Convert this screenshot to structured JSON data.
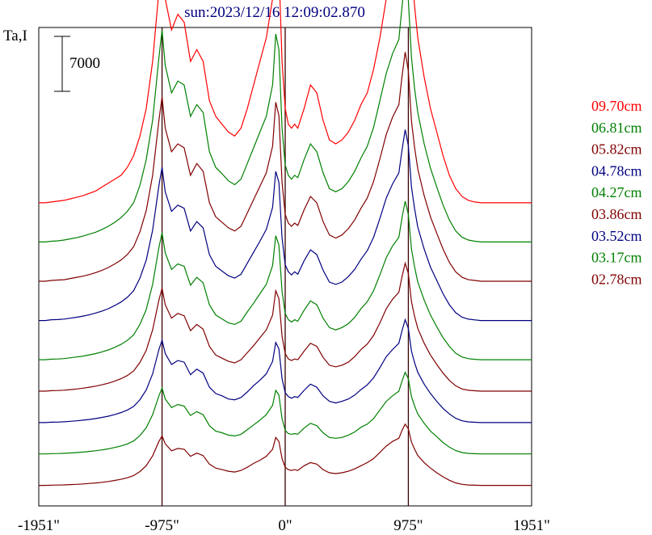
{
  "chart_data": {
    "type": "line",
    "title": "sun:2023/12/16 12:09:02.870",
    "ylabel": "Ta,I",
    "xlabel": "",
    "x_unit": "arcsec",
    "xlim": [
      -1951,
      1951
    ],
    "xticks": [
      {
        "value": -1951,
        "label": "-1951\""
      },
      {
        "value": -975,
        "label": "-975\""
      },
      {
        "value": 0,
        "label": "0\""
      },
      {
        "value": 975,
        "label": "975\""
      },
      {
        "value": 1951,
        "label": "1951\""
      }
    ],
    "vertical_lines": [
      -975,
      0,
      975
    ],
    "scale_bar": {
      "label": "7000",
      "value": 7000
    },
    "grid": false,
    "legend_position": "right",
    "x": [
      -1951,
      -1900,
      -1850,
      -1800,
      -1750,
      -1700,
      -1650,
      -1600,
      -1550,
      -1500,
      -1450,
      -1400,
      -1350,
      -1300,
      -1250,
      -1200,
      -1150,
      -1100,
      -1050,
      -1000,
      -975,
      -950,
      -900,
      -850,
      -800,
      -750,
      -700,
      -650,
      -600,
      -550,
      -500,
      -450,
      -400,
      -350,
      -300,
      -250,
      -200,
      -150,
      -100,
      -75,
      -50,
      -25,
      0,
      25,
      50,
      75,
      100,
      150,
      200,
      250,
      300,
      350,
      400,
      450,
      500,
      550,
      600,
      650,
      700,
      750,
      800,
      850,
      900,
      925,
      950,
      975,
      1000,
      1025,
      1050,
      1100,
      1150,
      1200,
      1250,
      1300,
      1350,
      1400,
      1450,
      1500,
      1550,
      1600,
      1650,
      1700,
      1750,
      1800,
      1850,
      1900,
      1951
    ],
    "series": [
      {
        "name": "09.70cm",
        "color": "#ff0000",
        "offset": 38000,
        "values": [
          0,
          0,
          100,
          200,
          300,
          500,
          700,
          900,
          1200,
          1500,
          2000,
          2500,
          3000,
          3500,
          4500,
          6000,
          8500,
          12000,
          18000,
          27000,
          31000,
          26000,
          22000,
          24000,
          23000,
          18000,
          19500,
          18000,
          13000,
          11000,
          10000,
          9000,
          8500,
          9500,
          12000,
          15000,
          18000,
          21000,
          26000,
          31500,
          30000,
          18000,
          12000,
          10000,
          9500,
          10000,
          9500,
          12000,
          15000,
          14000,
          10500,
          8000,
          7500,
          8000,
          9000,
          10500,
          12500,
          14000,
          17000,
          21000,
          26000,
          30000,
          33000,
          36000,
          38500,
          38000,
          30000,
          25000,
          21000,
          16000,
          12000,
          9000,
          6000,
          3500,
          1800,
          800,
          300,
          100,
          0,
          0,
          0,
          0,
          0,
          0,
          0,
          0,
          0
        ]
      },
      {
        "name": "06.81cm",
        "color": "#008000",
        "offset": 33000,
        "values": [
          0,
          0,
          100,
          150,
          250,
          400,
          550,
          750,
          1000,
          1250,
          1600,
          2000,
          2500,
          3100,
          3900,
          5000,
          7200,
          10500,
          15500,
          23500,
          27000,
          22500,
          19000,
          20500,
          20000,
          16000,
          17500,
          16500,
          11500,
          9500,
          8700,
          7800,
          7300,
          8000,
          10000,
          12000,
          14000,
          16000,
          20000,
          26500,
          24500,
          14500,
          9800,
          8500,
          8000,
          8500,
          8200,
          10500,
          12500,
          11500,
          8800,
          6800,
          6400,
          6800,
          7700,
          9000,
          10700,
          12200,
          14600,
          18000,
          21500,
          24000,
          25800,
          30000,
          33500,
          30800,
          23500,
          19500,
          16500,
          12500,
          9400,
          7000,
          4700,
          2800,
          1400,
          600,
          250,
          100,
          0,
          0,
          0,
          0,
          0,
          0,
          0,
          0,
          0
        ]
      },
      {
        "name": "05.82cm",
        "color": "#800000",
        "offset": 28000,
        "values": [
          0,
          0,
          100,
          150,
          200,
          350,
          500,
          650,
          850,
          1100,
          1400,
          1750,
          2200,
          2700,
          3400,
          4400,
          6300,
          9000,
          13500,
          20500,
          23500,
          19500,
          16500,
          17500,
          17000,
          13500,
          15000,
          14000,
          10000,
          8200,
          7500,
          6800,
          6400,
          7000,
          8700,
          10400,
          12100,
          13800,
          17200,
          22800,
          21100,
          12600,
          8500,
          7400,
          7000,
          7400,
          7100,
          9100,
          10800,
          10000,
          7600,
          5900,
          5500,
          5900,
          6700,
          7800,
          9300,
          10600,
          12700,
          15600,
          18700,
          20900,
          22500,
          26100,
          29200,
          26800,
          20400,
          17000,
          14300,
          10900,
          8200,
          6100,
          4100,
          2400,
          1200,
          500,
          200,
          100,
          0,
          0,
          0,
          0,
          0,
          0,
          0,
          0,
          0
        ]
      },
      {
        "name": "04.78cm",
        "color": "#000080",
        "offset": 23000,
        "values": [
          0,
          0,
          100,
          120,
          180,
          300,
          420,
          560,
          740,
          950,
          1200,
          1500,
          1900,
          2350,
          2950,
          3800,
          5400,
          7700,
          11500,
          17200,
          19500,
          16400,
          13900,
          14700,
          14300,
          11400,
          12600,
          11800,
          8400,
          6900,
          6300,
          5700,
          5400,
          5900,
          7300,
          8700,
          10100,
          11600,
          14400,
          19000,
          17600,
          10500,
          7100,
          6200,
          5800,
          6200,
          5900,
          7600,
          9000,
          8400,
          6400,
          4900,
          4600,
          4900,
          5600,
          6500,
          7800,
          8900,
          10600,
          13000,
          15600,
          17400,
          18800,
          21700,
          24300,
          22300,
          17000,
          14200,
          11900,
          9100,
          6800,
          5100,
          3400,
          2000,
          1000,
          420,
          170,
          80,
          0,
          0,
          0,
          0,
          0,
          0,
          0,
          0,
          0
        ]
      },
      {
        "name": "04.27cm",
        "color": "#008000",
        "offset": 18000,
        "values": [
          0,
          0,
          80,
          100,
          150,
          250,
          350,
          470,
          620,
          790,
          1000,
          1250,
          1580,
          1960,
          2460,
          3170,
          4500,
          6400,
          9600,
          14300,
          16200,
          13600,
          11500,
          12200,
          11900,
          9500,
          10500,
          9800,
          7000,
          5700,
          5200,
          4700,
          4500,
          4900,
          6100,
          7200,
          8400,
          9600,
          12000,
          15800,
          14600,
          8700,
          5900,
          5100,
          4800,
          5100,
          4900,
          6300,
          7500,
          7000,
          5300,
          4100,
          3800,
          4100,
          4600,
          5400,
          6500,
          7400,
          8800,
          10800,
          13000,
          14500,
          15600,
          18100,
          20200,
          18500,
          14100,
          11800,
          9900,
          7600,
          5700,
          4200,
          2800,
          1700,
          840,
          350,
          140,
          60,
          0,
          0,
          0,
          0,
          0,
          0,
          0,
          0,
          0
        ]
      },
      {
        "name": "03.86cm",
        "color": "#800000",
        "offset": 14000,
        "values": [
          0,
          0,
          60,
          80,
          120,
          200,
          280,
          380,
          500,
          640,
          810,
          1010,
          1280,
          1590,
          1990,
          2570,
          3650,
          5200,
          7800,
          11600,
          13100,
          11000,
          9300,
          9900,
          9600,
          7700,
          8500,
          7900,
          5700,
          4600,
          4200,
          3800,
          3600,
          4000,
          4900,
          5800,
          6800,
          7800,
          9700,
          12800,
          11800,
          7000,
          4800,
          4100,
          3900,
          4100,
          4000,
          5100,
          6100,
          5700,
          4300,
          3300,
          3100,
          3300,
          3700,
          4400,
          5300,
          6000,
          7100,
          8700,
          10500,
          11700,
          12600,
          14600,
          16300,
          15000,
          11400,
          9500,
          8000,
          6100,
          4600,
          3400,
          2300,
          1370,
          680,
          280,
          110,
          50,
          0,
          0,
          0,
          0,
          0,
          0,
          0,
          0,
          0
        ]
      },
      {
        "name": "03.52cm",
        "color": "#000080",
        "offset": 10000,
        "values": [
          0,
          0,
          50,
          60,
          100,
          160,
          220,
          300,
          400,
          510,
          650,
          810,
          1020,
          1270,
          1590,
          2050,
          2910,
          4150,
          6200,
          9300,
          10500,
          8800,
          7400,
          7900,
          7700,
          6100,
          6800,
          6300,
          4500,
          3700,
          3400,
          3000,
          2900,
          3200,
          3900,
          4700,
          5400,
          6200,
          7800,
          10200,
          9400,
          5600,
          3800,
          3300,
          3100,
          3300,
          3200,
          4100,
          4900,
          4500,
          3400,
          2700,
          2500,
          2700,
          3000,
          3500,
          4200,
          4800,
          5700,
          7000,
          8400,
          9300,
          10100,
          11700,
          13100,
          12000,
          9100,
          7600,
          6400,
          4900,
          3700,
          2700,
          1800,
          1100,
          540,
          220,
          90,
          40,
          0,
          0,
          0,
          0,
          0,
          0,
          0,
          0,
          0
        ]
      },
      {
        "name": "03.17cm",
        "color": "#008000",
        "offset": 6000,
        "values": [
          0,
          0,
          40,
          50,
          80,
          130,
          180,
          240,
          320,
          410,
          520,
          650,
          820,
          1020,
          1280,
          1650,
          2340,
          3340,
          5000,
          7400,
          8400,
          7000,
          5900,
          6300,
          6100,
          4900,
          5400,
          5000,
          3600,
          2900,
          2700,
          2400,
          2300,
          2500,
          3100,
          3700,
          4300,
          5000,
          6200,
          8100,
          7500,
          4500,
          3000,
          2600,
          2500,
          2600,
          2500,
          3300,
          3900,
          3600,
          2700,
          2100,
          2000,
          2100,
          2400,
          2800,
          3400,
          3800,
          4500,
          5600,
          6700,
          7400,
          8000,
          9300,
          10400,
          9600,
          7300,
          6100,
          5100,
          3900,
          2900,
          2200,
          1450,
          870,
          430,
          180,
          70,
          30,
          0,
          0,
          0,
          0,
          0,
          0,
          0,
          0,
          0
        ]
      },
      {
        "name": "02.78cm",
        "color": "#800000",
        "offset": 2000,
        "values": [
          0,
          0,
          30,
          40,
          60,
          100,
          130,
          180,
          240,
          310,
          390,
          490,
          620,
          770,
          960,
          1240,
          1760,
          2510,
          3750,
          5600,
          6300,
          5300,
          4400,
          4700,
          4600,
          3700,
          4100,
          3800,
          2700,
          2200,
          2000,
          1800,
          1700,
          1900,
          2300,
          2800,
          3200,
          3700,
          4600,
          6100,
          5600,
          3400,
          2300,
          2000,
          1900,
          2000,
          1900,
          2500,
          2900,
          2700,
          2000,
          1600,
          1500,
          1600,
          1800,
          2100,
          2500,
          2900,
          3400,
          4200,
          5000,
          5600,
          6000,
          7000,
          7800,
          7200,
          5500,
          4600,
          3800,
          2900,
          2200,
          1600,
          1090,
          650,
          320,
          130,
          50,
          20,
          0,
          0,
          0,
          0,
          0,
          0,
          0,
          0,
          0
        ]
      }
    ]
  }
}
